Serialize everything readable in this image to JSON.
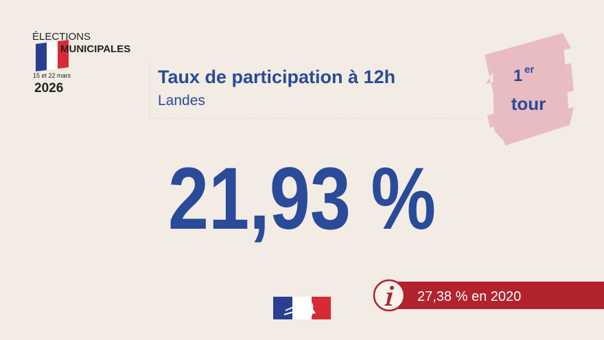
{
  "header": {
    "line1": "ÉLECTIONS",
    "line2": "MUNICIPALES",
    "dates": "15 et 22 mars",
    "year": "2026"
  },
  "title": "Taux de participation à 12h",
  "subtitle": "Landes",
  "badge": {
    "number": "1",
    "suffix": "er",
    "word": "tour"
  },
  "main_value": "21,93 %",
  "comparison": "27,38 % en 2020"
}
